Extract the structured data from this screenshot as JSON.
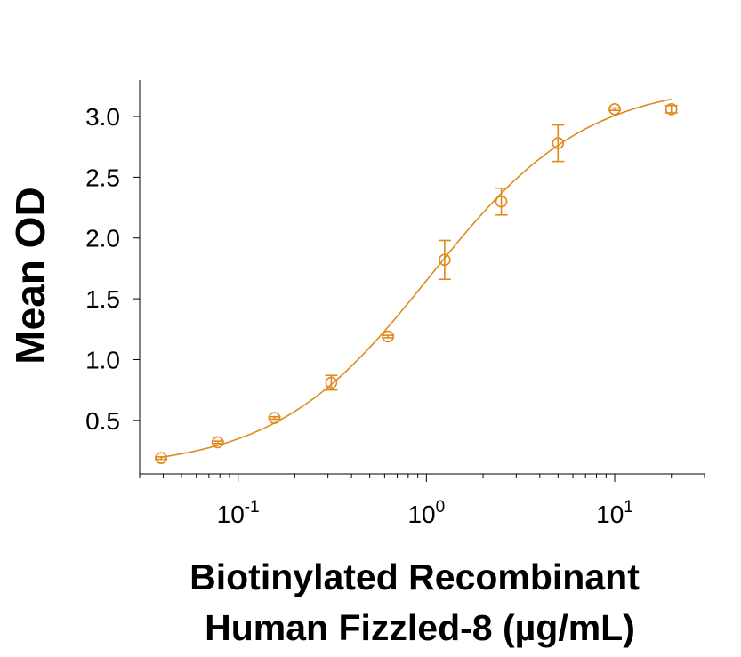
{
  "chart_data": {
    "type": "scatter",
    "title": "",
    "xlabel_lines": [
      "Biotinylated Recombinant",
      "Human Fizzled-8 (µg/mL)"
    ],
    "ylabel": "Mean OD",
    "x_scale": "log",
    "xlim": [
      0.03,
      30
    ],
    "ylim": [
      0.06,
      3.3
    ],
    "x_ticks": [
      {
        "value": 0.1,
        "base": "10",
        "exp": "-1"
      },
      {
        "value": 1,
        "base": "10",
        "exp": "0"
      },
      {
        "value": 10,
        "base": "10",
        "exp": "1"
      }
    ],
    "y_ticks": [
      {
        "value": 0.5,
        "label": "0.5"
      },
      {
        "value": 1.0,
        "label": "1.0"
      },
      {
        "value": 1.5,
        "label": "1.5"
      },
      {
        "value": 2.0,
        "label": "2.0"
      },
      {
        "value": 2.5,
        "label": "2.5"
      },
      {
        "value": 3.0,
        "label": "3.0"
      }
    ],
    "grid": false,
    "legend": "none",
    "color": "#E08A1E",
    "series": [
      {
        "x": [
          0.039,
          0.078,
          0.156,
          0.3125,
          0.625,
          1.25,
          2.5,
          5,
          10,
          20
        ],
        "y": [
          0.19,
          0.32,
          0.52,
          0.81,
          1.19,
          1.82,
          2.3,
          2.78,
          3.06,
          3.06
        ],
        "err": [
          0.01,
          0.01,
          0.01,
          0.06,
          0.01,
          0.16,
          0.11,
          0.15,
          0.01,
          0.03
        ]
      }
    ],
    "fit_curve": {
      "bottom": 0.1,
      "top": 3.28,
      "ec50": 1.05,
      "hill": 1.05
    }
  }
}
